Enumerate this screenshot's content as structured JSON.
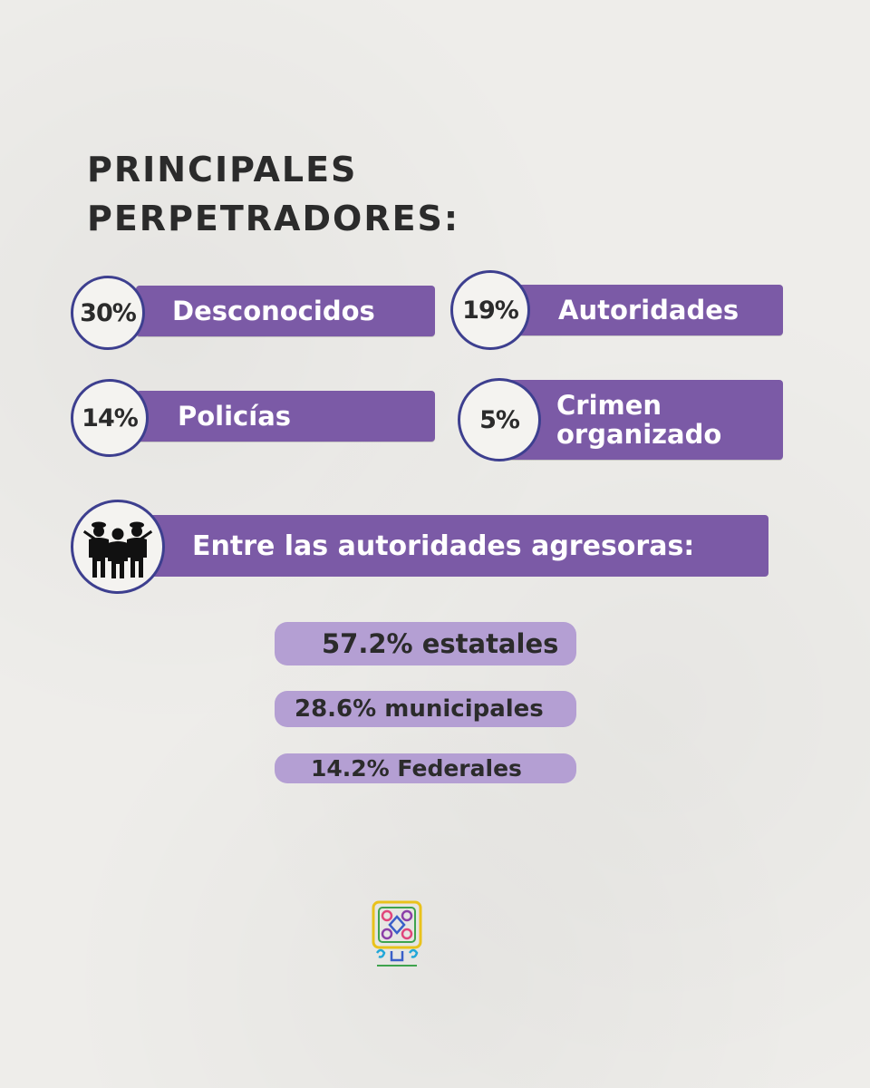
{
  "title": {
    "line1": "PRINCIPALES",
    "line2": "PERPETRADORES:"
  },
  "perpetrators": [
    {
      "percent": "30%",
      "label": "Desconocidos"
    },
    {
      "percent": "19%",
      "label": "Autoridades"
    },
    {
      "percent": "14%",
      "label": "Policías"
    },
    {
      "percent": "5%",
      "label_line1": "Crimen",
      "label_line2": "organizado"
    }
  ],
  "authorities": {
    "heading": "Entre las autoridades agresoras:",
    "icon": "police-group-icon",
    "items": [
      {
        "text": "57.2% estatales"
      },
      {
        "text": "28.6% municipales"
      },
      {
        "text": "14.2% Federales"
      }
    ]
  },
  "logo": {
    "icon": "organization-logo-icon"
  },
  "colors": {
    "background": "#eeedea",
    "bar_purple": "#7b5aa6",
    "pill_lavender": "#b49fd3",
    "circle_border": "#3d3f8f",
    "text_dark": "#2b2b2b"
  }
}
